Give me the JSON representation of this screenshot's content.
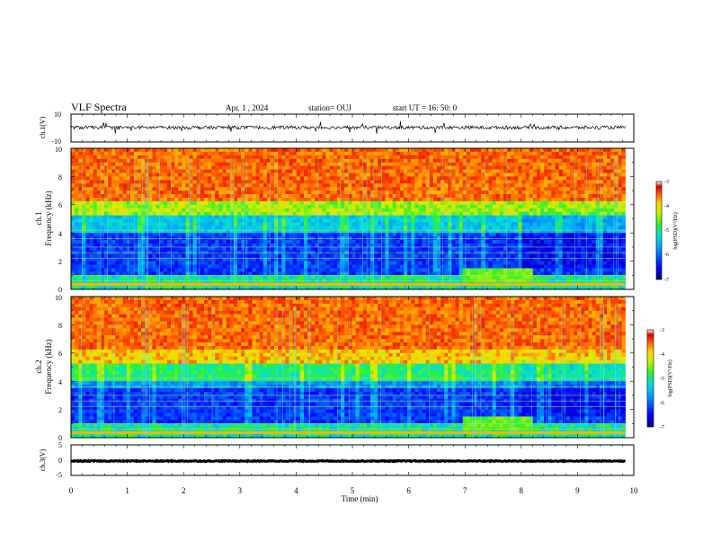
{
  "header": {
    "title": "VLF Spectra",
    "date": "Apr. 1 , 2024",
    "station": "station= OUJ",
    "start": "start  UT =   16: 50: 0"
  },
  "chart_data": [
    {
      "type": "line",
      "id": "ch1-waveform",
      "ylabel": "ch.1(V)",
      "ylim": [
        -10,
        10
      ],
      "y_ticks": [
        "10",
        "-10"
      ],
      "xlim": [
        0,
        10
      ],
      "x_end_data": 9.85,
      "baseline": 0.4,
      "amplitude": 1.2
    },
    {
      "type": "heatmap",
      "id": "ch1-spectrogram",
      "ylabel": [
        "ch.1",
        "Frequency  (kHz)"
      ],
      "ylim": [
        0,
        10
      ],
      "y_ticks": [
        "0",
        "2",
        "4",
        "6",
        "8",
        "10"
      ],
      "colorbar": {
        "label": "log(PSD)(V²/Hz)",
        "range": [
          -7,
          -3
        ],
        "ticks": [
          "-3",
          "-4",
          "-5",
          "-6",
          "-7"
        ]
      }
    },
    {
      "type": "heatmap",
      "id": "ch2-spectrogram",
      "ylabel": [
        "ch.2",
        "Frequency  (kHz)"
      ],
      "ylim": [
        0,
        10
      ],
      "y_ticks": [
        "0",
        "2",
        "4",
        "6",
        "8",
        "10"
      ],
      "colorbar": {
        "label": "log(PSD)(V²/Hz)",
        "range": [
          -7,
          -3
        ],
        "ticks": [
          "-3",
          "-4",
          "-5",
          "-6",
          "-7"
        ]
      }
    },
    {
      "type": "line",
      "id": "ch3-waveform",
      "ylabel": "ch.3(V)",
      "ylim": [
        -5,
        5
      ],
      "y_ticks": [
        "5",
        "0",
        "-5"
      ],
      "xlim": [
        0,
        10
      ],
      "x_end_data": 9.85,
      "baseline": -0.3,
      "amplitude": 0.15
    }
  ],
  "x_axis": {
    "label": "Time  (min)",
    "ticks": [
      "0",
      "1",
      "2",
      "3",
      "4",
      "5",
      "6",
      "7",
      "8",
      "9",
      "10"
    ]
  }
}
